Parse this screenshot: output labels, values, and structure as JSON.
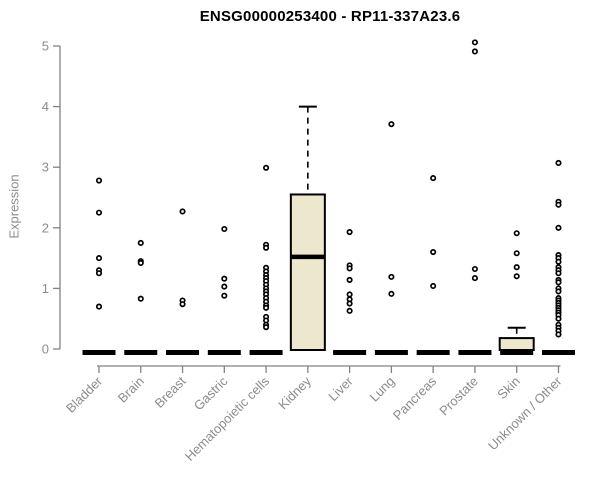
{
  "title": "ENSG00000253400 - RP11-337A23.6",
  "chart_data": {
    "type": "boxplot",
    "title": "ENSG00000253400 - RP11-337A23.6",
    "xlabel": "",
    "ylabel": "Expression",
    "ylim": [
      0,
      5.1
    ],
    "yticks": [
      0,
      1,
      2,
      3,
      4,
      5
    ],
    "grid": false,
    "legend": false,
    "categories": [
      "Bladder",
      "Brain",
      "Breast",
      "Gastric",
      "Hematopoietic cells",
      "Kidney",
      "Liver",
      "Lung",
      "Pancreas",
      "Prostate",
      "Skin",
      "Unknown / Other"
    ],
    "colors": {
      "box_fill": "#ece7cd",
      "box_border": "#000000",
      "median": "#000000",
      "outlier": "#000000",
      "axis": "#828282",
      "tick_text": "#8c8c8c",
      "title_text": "#000000",
      "background": "#ffffff"
    },
    "series": [
      {
        "name": "Bladder",
        "box": {
          "q1": 0,
          "median": 0,
          "q3": 0,
          "whisker_low": 0,
          "whisker_high": 0,
          "collapsed": true
        },
        "outliers": [
          2.78,
          2.25,
          1.5,
          1.3,
          1.25,
          0.7
        ]
      },
      {
        "name": "Brain",
        "box": {
          "q1": 0,
          "median": 0,
          "q3": 0,
          "whisker_low": 0,
          "whisker_high": 0,
          "collapsed": true
        },
        "outliers": [
          1.75,
          1.45,
          1.42,
          0.83
        ]
      },
      {
        "name": "Breast",
        "box": {
          "q1": 0,
          "median": 0,
          "q3": 0,
          "whisker_low": 0,
          "whisker_high": 0,
          "collapsed": true
        },
        "outliers": [
          2.27,
          0.8,
          0.74
        ]
      },
      {
        "name": "Gastric",
        "box": {
          "q1": 0,
          "median": 0,
          "q3": 0,
          "whisker_low": 0,
          "whisker_high": 0,
          "collapsed": true
        },
        "outliers": [
          1.98,
          1.16,
          1.03,
          0.88
        ]
      },
      {
        "name": "Hematopoietic cells",
        "box": {
          "q1": 0,
          "median": 0,
          "q3": 0,
          "whisker_low": 0,
          "whisker_high": 0,
          "collapsed": true
        },
        "outliers": [
          2.99,
          1.72,
          1.67,
          1.34,
          1.28,
          1.22,
          1.17,
          1.12,
          1.06,
          1.0,
          0.95,
          0.9,
          0.84,
          0.78,
          0.72,
          0.68,
          0.53,
          0.47,
          0.4,
          0.36
        ]
      },
      {
        "name": "Kidney",
        "box": {
          "q1": 0,
          "median": 1.52,
          "q3": 2.55,
          "whisker_low": 0,
          "whisker_high": 4.0,
          "collapsed": false
        },
        "outliers": []
      },
      {
        "name": "Liver",
        "box": {
          "q1": 0,
          "median": 0,
          "q3": 0,
          "whisker_low": 0,
          "whisker_high": 0,
          "collapsed": true
        },
        "outliers": [
          1.93,
          1.38,
          1.33,
          1.14,
          0.9,
          0.82,
          0.75,
          0.63
        ]
      },
      {
        "name": "Lung",
        "box": {
          "q1": 0,
          "median": 0,
          "q3": 0,
          "whisker_low": 0,
          "whisker_high": 0,
          "collapsed": true
        },
        "outliers": [
          3.71,
          1.19,
          0.91
        ]
      },
      {
        "name": "Pancreas",
        "box": {
          "q1": 0,
          "median": 0,
          "q3": 0,
          "whisker_low": 0,
          "whisker_high": 0,
          "collapsed": true
        },
        "outliers": [
          2.82,
          1.6,
          1.04
        ]
      },
      {
        "name": "Prostate",
        "box": {
          "q1": 0,
          "median": 0,
          "q3": 0,
          "whisker_low": 0,
          "whisker_high": 0,
          "collapsed": true
        },
        "outliers": [
          5.06,
          4.91,
          1.32,
          1.17
        ]
      },
      {
        "name": "Skin",
        "box": {
          "q1": 0,
          "median": 0,
          "q3": 0.18,
          "whisker_low": 0,
          "whisker_high": 0.35,
          "collapsed": false
        },
        "outliers": [
          1.91,
          1.58,
          1.35,
          1.2
        ]
      },
      {
        "name": "Unknown / Other",
        "box": {
          "q1": 0,
          "median": 0,
          "q3": 0,
          "whisker_low": 0,
          "whisker_high": 0,
          "collapsed": true
        },
        "outliers": [
          3.07,
          2.43,
          2.38,
          2.0,
          1.55,
          1.5,
          1.44,
          1.35,
          1.3,
          1.25,
          1.14,
          1.1,
          1.0,
          0.95,
          0.84,
          0.8,
          0.76,
          0.72,
          0.68,
          0.64,
          0.6,
          0.56,
          0.5,
          0.4,
          0.35,
          0.3,
          0.24
        ]
      }
    ]
  }
}
